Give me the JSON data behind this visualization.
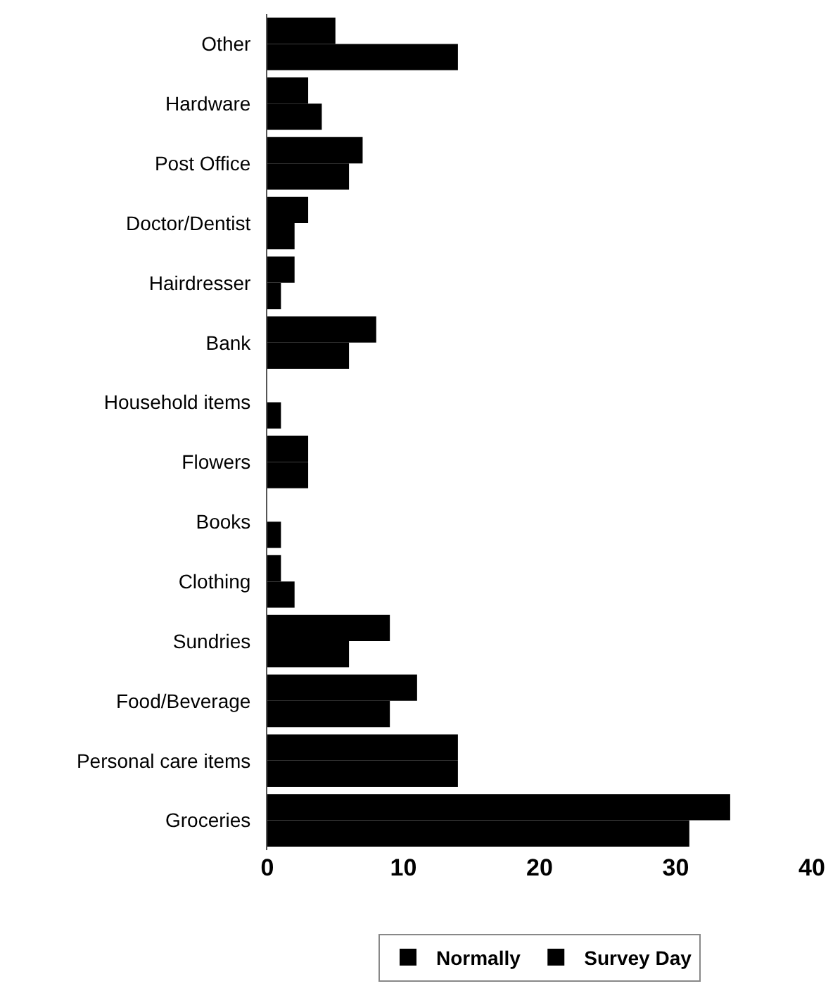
{
  "chart_data": {
    "type": "bar",
    "orientation": "horizontal",
    "categories": [
      "Other",
      "Hardware",
      "Post Office",
      "Doctor/Dentist",
      "Hairdresser",
      "Bank",
      "Household items",
      "Flowers",
      "Books",
      "Clothing",
      "Sundries",
      "Food/Beverage",
      "Personal care items",
      "Groceries"
    ],
    "series": [
      {
        "name": "Survey Day",
        "color": "#000000",
        "values": [
          5,
          3,
          7,
          3,
          2,
          8,
          0,
          3,
          0,
          1,
          9,
          11,
          14,
          34
        ]
      },
      {
        "name": "Normally",
        "color": "#000000",
        "values": [
          14,
          4,
          6,
          2,
          1,
          6,
          1,
          3,
          1,
          2,
          6,
          9,
          14,
          31
        ]
      }
    ],
    "xlim": [
      0,
      40
    ],
    "xticks": [
      0,
      10,
      20,
      30,
      40
    ],
    "grid": false,
    "legend": "bottom"
  }
}
